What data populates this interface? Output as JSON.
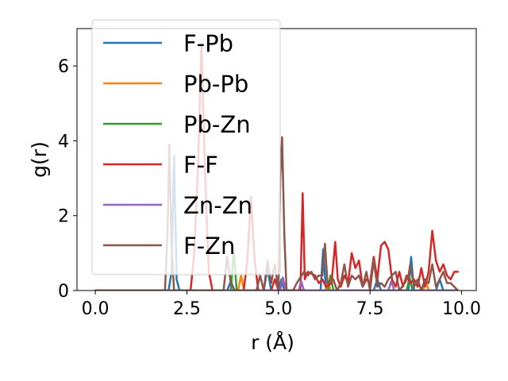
{
  "chart_data": {
    "type": "line",
    "xlabel": "r (Å)",
    "ylabel": "g(r)",
    "xlim": [
      -0.5,
      10.4
    ],
    "ylim": [
      0,
      7.0
    ],
    "xticks": [
      0.0,
      2.5,
      5.0,
      7.5,
      10.0
    ],
    "xtick_labels": [
      "0.0",
      "2.5",
      "5.0",
      "7.5",
      "10.0"
    ],
    "yticks": [
      0,
      2,
      4,
      6
    ],
    "ytick_labels": [
      "0",
      "2",
      "4",
      "6"
    ],
    "legend_position": "top-left",
    "series": [
      {
        "name": "F-Pb",
        "color": "#1f77b4",
        "points": [
          [
            0,
            0
          ],
          [
            2.0,
            0
          ],
          [
            2.08,
            0.5
          ],
          [
            2.15,
            3.6
          ],
          [
            2.22,
            0.3
          ],
          [
            2.3,
            0
          ],
          [
            3.6,
            0
          ],
          [
            3.7,
            0.25
          ],
          [
            3.8,
            0
          ],
          [
            4.6,
            0
          ],
          [
            4.7,
            0.6
          ],
          [
            4.8,
            0
          ],
          [
            5.0,
            0
          ],
          [
            5.08,
            0.3
          ],
          [
            5.16,
            0
          ],
          [
            6.15,
            0
          ],
          [
            6.22,
            1.1
          ],
          [
            6.3,
            0
          ],
          [
            7.6,
            0
          ],
          [
            7.7,
            0.3
          ],
          [
            7.8,
            0
          ],
          [
            8.55,
            0
          ],
          [
            8.62,
            0.9
          ],
          [
            8.7,
            0
          ],
          [
            9.3,
            0
          ],
          [
            9.4,
            0.3
          ],
          [
            9.5,
            0
          ],
          [
            9.9,
            0
          ]
        ]
      },
      {
        "name": "Pb-Pb",
        "color": "#ff7f0e",
        "points": [
          [
            0,
            0
          ],
          [
            3.9,
            0
          ],
          [
            3.98,
            0.4
          ],
          [
            4.06,
            0
          ],
          [
            6.3,
            0
          ],
          [
            6.36,
            0.25
          ],
          [
            6.42,
            0
          ],
          [
            8.95,
            0
          ],
          [
            9.02,
            0.3
          ],
          [
            9.1,
            0
          ],
          [
            9.9,
            0
          ]
        ]
      },
      {
        "name": "Pb-Zn",
        "color": "#2ca02c",
        "points": [
          [
            0,
            0
          ],
          [
            3.7,
            0
          ],
          [
            3.78,
            1.05
          ],
          [
            3.86,
            0
          ],
          [
            6.35,
            0
          ],
          [
            6.42,
            0.4
          ],
          [
            6.5,
            0
          ],
          [
            8.5,
            0
          ],
          [
            8.58,
            0.35
          ],
          [
            8.66,
            0
          ],
          [
            9.9,
            0
          ]
        ]
      },
      {
        "name": "F-F",
        "color": "#d62728",
        "points": [
          [
            0,
            0
          ],
          [
            2.6,
            0
          ],
          [
            2.7,
            1.0
          ],
          [
            2.8,
            3.2
          ],
          [
            2.9,
            6.6
          ],
          [
            3.0,
            3.0
          ],
          [
            3.1,
            0.5
          ],
          [
            3.2,
            0
          ],
          [
            4.05,
            0
          ],
          [
            4.15,
            0.8
          ],
          [
            4.25,
            2.5
          ],
          [
            4.35,
            0.8
          ],
          [
            4.45,
            0
          ],
          [
            4.8,
            0
          ],
          [
            4.9,
            0.3
          ],
          [
            5.0,
            0
          ],
          [
            5.6,
            0
          ],
          [
            5.66,
            2.6
          ],
          [
            5.72,
            0.3
          ],
          [
            5.8,
            0.5
          ],
          [
            6.0,
            0.4
          ],
          [
            6.1,
            0.2
          ],
          [
            6.2,
            0.3
          ],
          [
            6.3,
            0.1
          ],
          [
            6.45,
            0.2
          ],
          [
            6.55,
            1.3
          ],
          [
            6.62,
            0.3
          ],
          [
            6.7,
            0.1
          ],
          [
            6.8,
            0.4
          ],
          [
            6.9,
            0.2
          ],
          [
            7.0,
            1.0
          ],
          [
            7.1,
            0.6
          ],
          [
            7.2,
            0.8
          ],
          [
            7.3,
            0.1
          ],
          [
            7.4,
            0.3
          ],
          [
            7.5,
            0.2
          ],
          [
            7.6,
            0.9
          ],
          [
            7.7,
            0.3
          ],
          [
            7.8,
            1.2
          ],
          [
            7.9,
            1.3
          ],
          [
            8.0,
            1.1
          ],
          [
            8.1,
            0.3
          ],
          [
            8.2,
            0.1
          ],
          [
            8.3,
            0.5
          ],
          [
            8.4,
            0.1
          ],
          [
            8.5,
            0.4
          ],
          [
            8.6,
            0.2
          ],
          [
            8.7,
            0.3
          ],
          [
            8.8,
            0.1
          ],
          [
            8.9,
            0.6
          ],
          [
            9.0,
            0.1
          ],
          [
            9.1,
            0.5
          ],
          [
            9.2,
            1.6
          ],
          [
            9.3,
            0.8
          ],
          [
            9.4,
            0.5
          ],
          [
            9.5,
            0.7
          ],
          [
            9.6,
            0.4
          ],
          [
            9.7,
            0.3
          ],
          [
            9.8,
            0.5
          ],
          [
            9.9,
            0.5
          ]
        ]
      },
      {
        "name": "Zn-Zn",
        "color": "#9467bd",
        "points": [
          [
            0,
            0
          ],
          [
            5.05,
            0
          ],
          [
            5.12,
            0.35
          ],
          [
            5.2,
            0
          ],
          [
            5.55,
            0
          ],
          [
            5.62,
            0.25
          ],
          [
            5.7,
            0
          ],
          [
            8.0,
            0
          ],
          [
            8.08,
            0.25
          ],
          [
            8.16,
            0
          ],
          [
            9.9,
            0
          ]
        ]
      },
      {
        "name": "F-Zn",
        "color": "#8c564b",
        "points": [
          [
            0,
            0
          ],
          [
            1.9,
            0
          ],
          [
            1.97,
            1.5
          ],
          [
            2.02,
            3.9
          ],
          [
            2.08,
            1.2
          ],
          [
            2.15,
            0
          ],
          [
            3.5,
            0
          ],
          [
            3.6,
            0.9
          ],
          [
            3.7,
            0.2
          ],
          [
            3.8,
            0
          ],
          [
            4.4,
            0
          ],
          [
            4.5,
            0.4
          ],
          [
            4.6,
            0
          ],
          [
            4.7,
            0.8
          ],
          [
            4.8,
            0.2
          ],
          [
            4.9,
            0.7
          ],
          [
            5.0,
            0
          ],
          [
            5.05,
            3.0
          ],
          [
            5.1,
            4.1
          ],
          [
            5.16,
            1.5
          ],
          [
            5.22,
            0
          ],
          [
            5.4,
            0
          ],
          [
            5.5,
            0.2
          ],
          [
            5.7,
            0.5
          ],
          [
            5.8,
            0.4
          ],
          [
            5.9,
            0.5
          ],
          [
            6.0,
            0.3
          ],
          [
            6.1,
            0.4
          ],
          [
            6.2,
            0.4
          ],
          [
            6.27,
            1.25
          ],
          [
            6.34,
            0.2
          ],
          [
            6.5,
            0.3
          ],
          [
            6.6,
            0
          ],
          [
            6.7,
            0.2
          ],
          [
            6.8,
            0.7
          ],
          [
            6.9,
            0.1
          ],
          [
            7.0,
            0.4
          ],
          [
            7.1,
            0.3
          ],
          [
            7.2,
            0.4
          ],
          [
            7.3,
            0.1
          ],
          [
            7.4,
            0.5
          ],
          [
            7.5,
            0
          ],
          [
            7.6,
            0.8
          ],
          [
            7.7,
            0.1
          ],
          [
            7.8,
            0.2
          ],
          [
            7.9,
            0.1
          ],
          [
            8.0,
            0.3
          ],
          [
            8.2,
            0.5
          ],
          [
            8.3,
            0
          ],
          [
            8.45,
            0.2
          ],
          [
            8.55,
            0.4
          ],
          [
            8.6,
            0.7
          ],
          [
            8.7,
            0.1
          ],
          [
            8.8,
            0.3
          ],
          [
            8.9,
            0
          ],
          [
            9.0,
            0.3
          ],
          [
            9.1,
            0.2
          ],
          [
            9.2,
            0.7
          ],
          [
            9.3,
            0.1
          ],
          [
            9.4,
            0.3
          ],
          [
            9.5,
            0.5
          ],
          [
            9.6,
            0.2
          ],
          [
            9.7,
            0.2
          ],
          [
            9.8,
            0.1
          ],
          [
            9.9,
            0
          ]
        ]
      }
    ]
  }
}
